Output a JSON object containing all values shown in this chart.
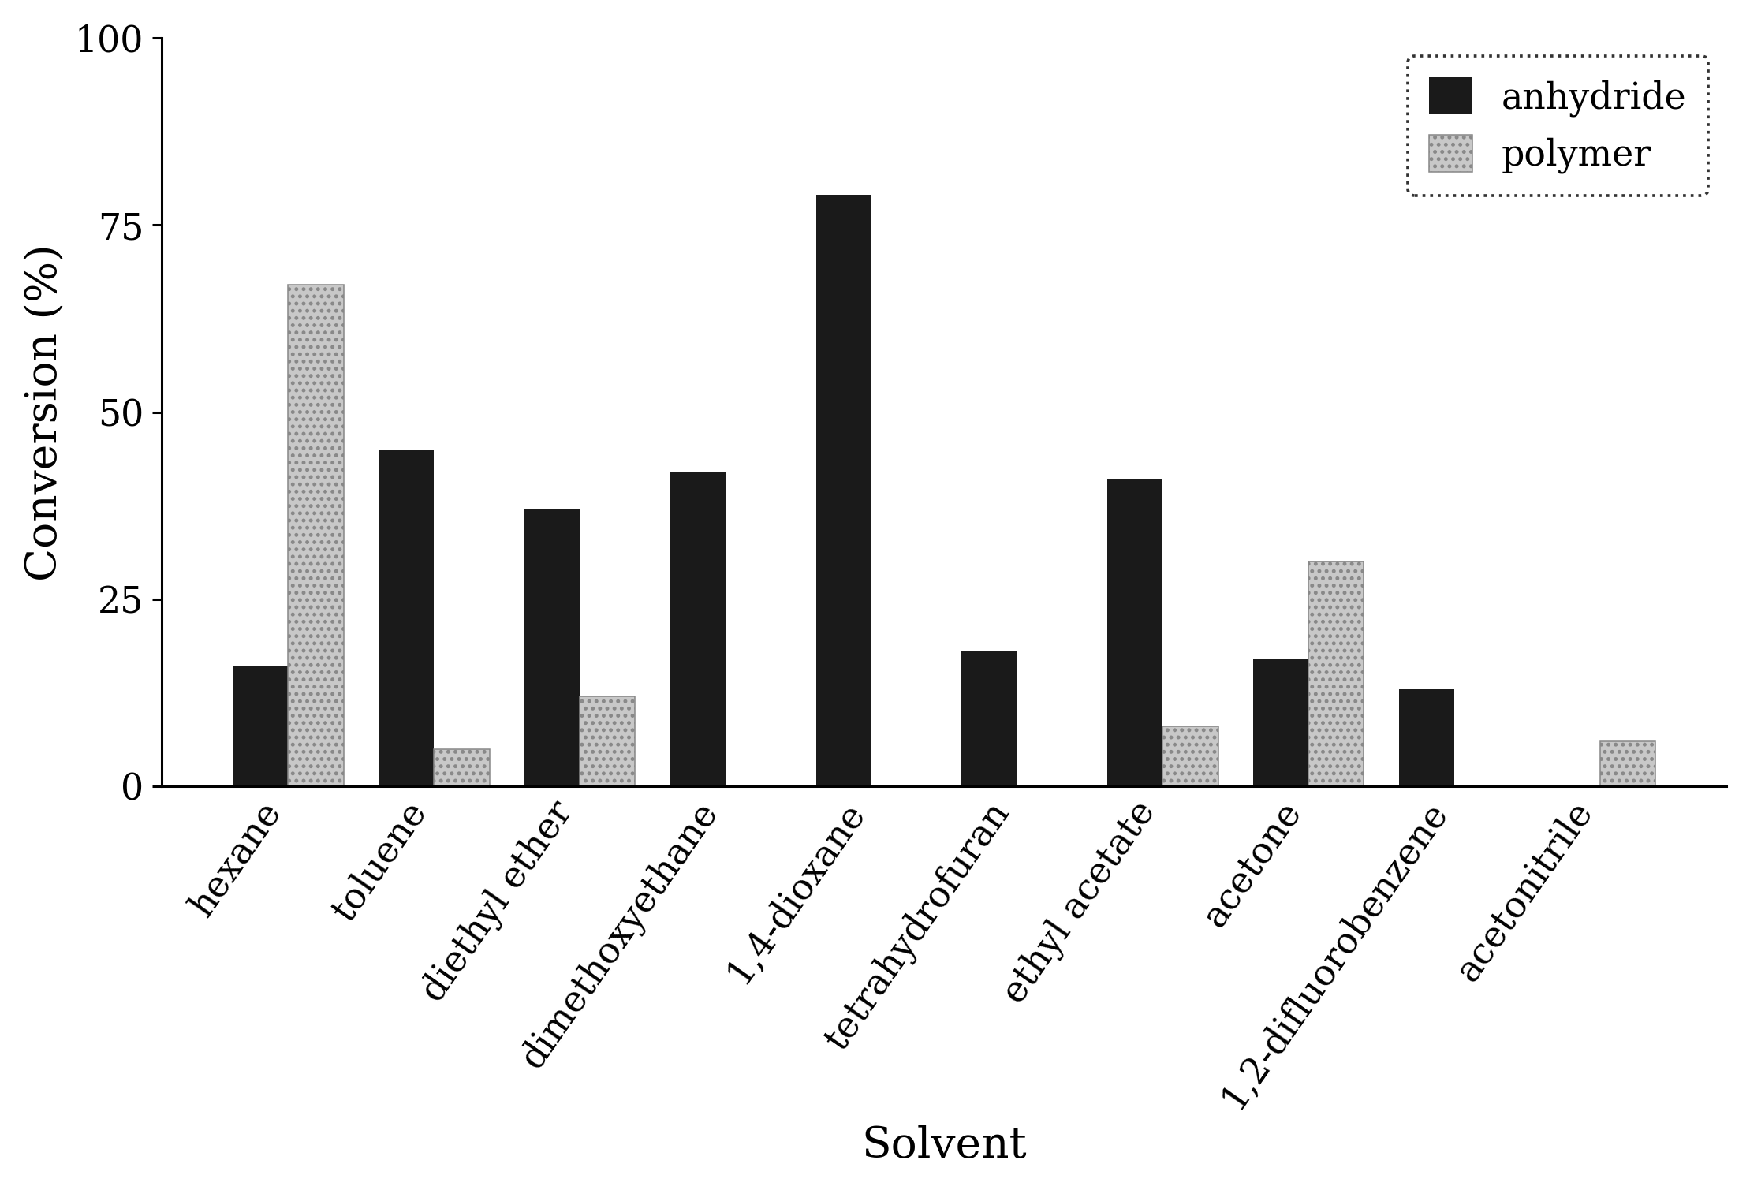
{
  "categories": [
    "hexane",
    "toluene",
    "diethyl ether",
    "dimethoxyethane",
    "1,4-dioxane",
    "tetrahydrofuran",
    "ethyl acetate",
    "acetone",
    "1,2-difluorobenzene",
    "acetonitrile"
  ],
  "anhydride": [
    16,
    45,
    37,
    42,
    79,
    18,
    41,
    17,
    13,
    0
  ],
  "polymer": [
    67,
    5,
    12,
    0,
    0,
    0,
    8,
    30,
    0,
    6
  ],
  "anhydride_color": "#1a1a1a",
  "polymer_color": "#c8c8c8",
  "title": "",
  "xlabel": "Solvent",
  "ylabel": "Conversion (%)",
  "ylim": [
    0,
    100
  ],
  "yticks": [
    0,
    25,
    50,
    75,
    100
  ],
  "legend_labels": [
    "anhydride",
    "polymer"
  ],
  "xlabel_fontsize": 18,
  "ylabel_fontsize": 18,
  "tick_fontsize": 15,
  "legend_fontsize": 15,
  "bar_width": 0.38,
  "figsize": [
    10.09,
    6.86
  ],
  "dpi": 220
}
